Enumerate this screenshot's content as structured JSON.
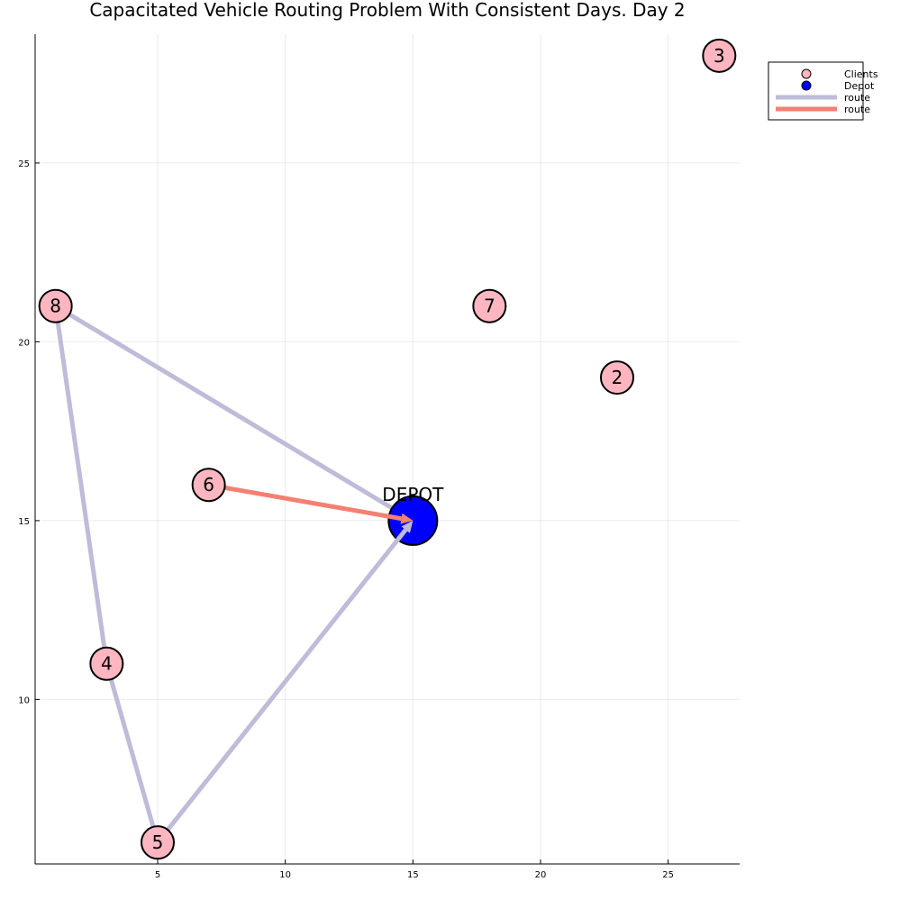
{
  "chart_data": {
    "type": "scatter",
    "title": "Capacitated Vehicle Routing Problem With Consistent Days. Day 2",
    "xlabel": "",
    "ylabel": "",
    "xlim": [
      0.2,
      27.8
    ],
    "ylim": [
      5.4,
      28.6
    ],
    "xticks": [
      5,
      10,
      15,
      20,
      25
    ],
    "yticks": [
      10,
      15,
      20,
      25
    ],
    "grid": true,
    "legend_position": "top-right",
    "colors": {
      "clients": "#ffb6c1",
      "depot": "#0000ff",
      "route_1": "#bebcd8",
      "route_2": "#f28173",
      "marker_stroke": "#000000"
    },
    "legend": [
      {
        "label": "Clients",
        "kind": "marker",
        "color": "#ffb6c1"
      },
      {
        "label": "Depot",
        "kind": "marker",
        "color": "#0000ff"
      },
      {
        "label": "route",
        "kind": "line",
        "color": "#bebcd8"
      },
      {
        "label": "route",
        "kind": "line",
        "color": "#f28173"
      }
    ],
    "depot": {
      "label": "DEPOT",
      "x": 15,
      "y": 15
    },
    "clients": [
      {
        "label": "2",
        "x": 23,
        "y": 19
      },
      {
        "label": "3",
        "x": 27,
        "y": 28
      },
      {
        "label": "4",
        "x": 3,
        "y": 11
      },
      {
        "label": "5",
        "x": 5,
        "y": 6
      },
      {
        "label": "6",
        "x": 7,
        "y": 16
      },
      {
        "label": "7",
        "x": 18,
        "y": 21
      },
      {
        "label": "8",
        "x": 1,
        "y": 21
      }
    ],
    "routes": [
      {
        "name": "route",
        "color": "#bebcd8",
        "points": [
          [
            15,
            15
          ],
          [
            1,
            21
          ],
          [
            3,
            11
          ],
          [
            5,
            6
          ],
          [
            15,
            15
          ]
        ]
      },
      {
        "name": "route",
        "color": "#f28173",
        "points": [
          [
            7,
            16
          ],
          [
            15,
            15
          ]
        ]
      }
    ]
  }
}
